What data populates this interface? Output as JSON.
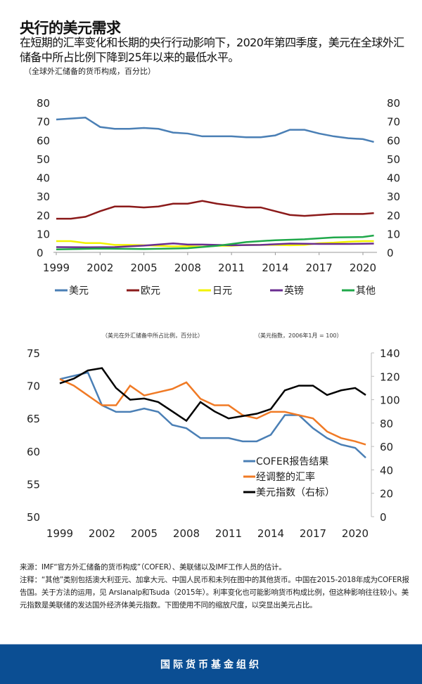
{
  "header": {
    "title": "央行的美元需求",
    "subtitle": "在短期的汇率变化和长期的央行行动影响下，2020年第四季度，美元在全球外汇储备中所占比例下降到25年以来的最低水平。",
    "unit_note": "（全球外汇储备的货币构成，百分比）"
  },
  "chart_data": [
    {
      "type": "line",
      "ylabel": "",
      "xlim": [
        1999,
        2020.75
      ],
      "ylim": [
        0,
        80
      ],
      "y_ticks": [
        0,
        10,
        20,
        30,
        40,
        50,
        60,
        70,
        80
      ],
      "x_ticks": [
        1999,
        2002,
        2005,
        2008,
        2011,
        2014,
        2017,
        2020
      ],
      "right_axis_ticks": [
        0,
        10,
        20,
        30,
        40,
        50,
        60,
        70,
        80
      ],
      "grid": false,
      "legend_position": "bottom",
      "series": [
        {
          "name": "美元",
          "color": "#4a7fb5",
          "x": [
            1999,
            2000,
            2001,
            2002,
            2003,
            2004,
            2005,
            2006,
            2007,
            2008,
            2009,
            2010,
            2011,
            2012,
            2013,
            2014,
            2015,
            2016,
            2017,
            2018,
            2019,
            2020,
            2020.75
          ],
          "y": [
            71,
            71.5,
            72,
            67,
            66,
            66,
            66.5,
            66,
            64,
            63.5,
            62,
            62,
            62,
            61.5,
            61.5,
            62.5,
            65.5,
            65.5,
            63.5,
            62,
            61,
            60.5,
            59
          ]
        },
        {
          "name": "欧元",
          "color": "#8b1a1a",
          "x": [
            1999,
            2000,
            2001,
            2002,
            2003,
            2004,
            2005,
            2006,
            2007,
            2008,
            2009,
            2010,
            2011,
            2012,
            2013,
            2014,
            2015,
            2016,
            2017,
            2018,
            2019,
            2020,
            2020.75
          ],
          "y": [
            18,
            18,
            19,
            22,
            24.5,
            24.5,
            24,
            24.5,
            26,
            26,
            27.5,
            26,
            25,
            24,
            24,
            22,
            20,
            19.5,
            20,
            20.5,
            20.5,
            20.5,
            21
          ]
        },
        {
          "name": "日元",
          "color": "#f2f200",
          "x": [
            1999,
            2000,
            2001,
            2002,
            2003,
            2004,
            2005,
            2006,
            2007,
            2008,
            2009,
            2010,
            2011,
            2012,
            2013,
            2014,
            2015,
            2016,
            2017,
            2018,
            2019,
            2020,
            2020.75
          ],
          "y": [
            6,
            6,
            5,
            5,
            4,
            4,
            3.8,
            3.5,
            3.2,
            3.3,
            3,
            3.5,
            3.5,
            4,
            4,
            4,
            3.8,
            4,
            4.9,
            5.2,
            5.7,
            6,
            6
          ]
        },
        {
          "name": "英镑",
          "color": "#6a2d91",
          "x": [
            1999,
            2001,
            2003,
            2005,
            2007,
            2008,
            2009,
            2011,
            2013,
            2015,
            2017,
            2019,
            2020.75
          ],
          "y": [
            2.8,
            2.7,
            2.8,
            3.6,
            4.8,
            4.2,
            4.2,
            3.8,
            4,
            4.7,
            4.5,
            4.5,
            4.7
          ]
        },
        {
          "name": "其他",
          "color": "#1fa84a",
          "x": [
            1999,
            2002,
            2005,
            2008,
            2010,
            2012,
            2014,
            2016,
            2018,
            2020,
            2020.75
          ],
          "y": [
            1.6,
            2,
            1.8,
            2.2,
            3.5,
            5.5,
            6.5,
            7,
            8,
            8.2,
            9
          ]
        }
      ]
    },
    {
      "type": "line",
      "left_axis_label": "（美元在外汇储备中所占比例，百分比）",
      "right_axis_label": "（美元指数，2006年1月 = 100）",
      "xlim": [
        1999,
        2020.75
      ],
      "ylim": [
        50,
        75
      ],
      "y_ticks": [
        50,
        55,
        60,
        65,
        70,
        75
      ],
      "ylim_right": [
        0,
        140
      ],
      "y_ticks_right": [
        0,
        20,
        40,
        60,
        80,
        100,
        120,
        140
      ],
      "x_ticks": [
        1999,
        2002,
        2005,
        2008,
        2011,
        2014,
        2017,
        2020
      ],
      "grid": false,
      "legend_position": "bottom-right",
      "series": [
        {
          "name": "COFER报告结果",
          "axis": "left",
          "color": "#4a7fb5",
          "x": [
            1999,
            2000,
            2001,
            2002,
            2003,
            2004,
            2005,
            2006,
            2007,
            2008,
            2009,
            2010,
            2011,
            2012,
            2013,
            2014,
            2015,
            2016,
            2017,
            2018,
            2019,
            2020,
            2020.75
          ],
          "y": [
            71,
            71.5,
            72,
            67,
            66,
            66,
            66.5,
            66,
            64,
            63.5,
            62,
            62,
            62,
            61.5,
            61.5,
            62.5,
            65.5,
            65.5,
            63.5,
            62,
            61,
            60.5,
            59
          ]
        },
        {
          "name": "经调整的汇率",
          "axis": "left",
          "color": "#f07a25",
          "x": [
            1999,
            2000,
            2001,
            2002,
            2003,
            2004,
            2005,
            2006,
            2007,
            2008,
            2009,
            2010,
            2011,
            2012,
            2013,
            2014,
            2015,
            2016,
            2017,
            2018,
            2019,
            2020,
            2020.75
          ],
          "y": [
            71,
            70,
            68.5,
            67,
            67,
            70,
            68.5,
            69,
            69.5,
            70.5,
            68,
            67,
            67,
            65.5,
            65,
            66,
            66,
            65.5,
            65,
            63,
            62,
            61.5,
            61
          ]
        },
        {
          "name": "美元指数（右标）",
          "axis": "right",
          "color": "#000000",
          "x": [
            1999,
            2000,
            2001,
            2002,
            2003,
            2004,
            2005,
            2006,
            2007,
            2008,
            2009,
            2010,
            2011,
            2012,
            2013,
            2014,
            2015,
            2016,
            2017,
            2018,
            2019,
            2020,
            2020.75
          ],
          "y": [
            114,
            118,
            125,
            127,
            110,
            100,
            101,
            98,
            90,
            82,
            98,
            90,
            84,
            86,
            88,
            92,
            108,
            112,
            112,
            104,
            108,
            110,
            104
          ]
        }
      ]
    }
  ],
  "notes": {
    "source": "来源：IMF“官方外汇储备的货币构成”（COFER）、美联储以及IMF工作人员的估计。",
    "note": "注释：“其他”类别包括澳大利亚元、加拿大元、中国人民币和未列在图中的其他货币。中国在2015-2018年成为COFER报告国。关于方法的运用，见 Arslanalp和Tsuda（2015年）。利率变化也可能影响货币构成比例，但这种影响往往较小。美元指数是美联储的发达国外经济体美元指数。下图使用不同的缩放尺度，以突显出美元占比。"
  },
  "footer": {
    "org": "国际货币基金组织",
    "color": "#0b4e93"
  }
}
